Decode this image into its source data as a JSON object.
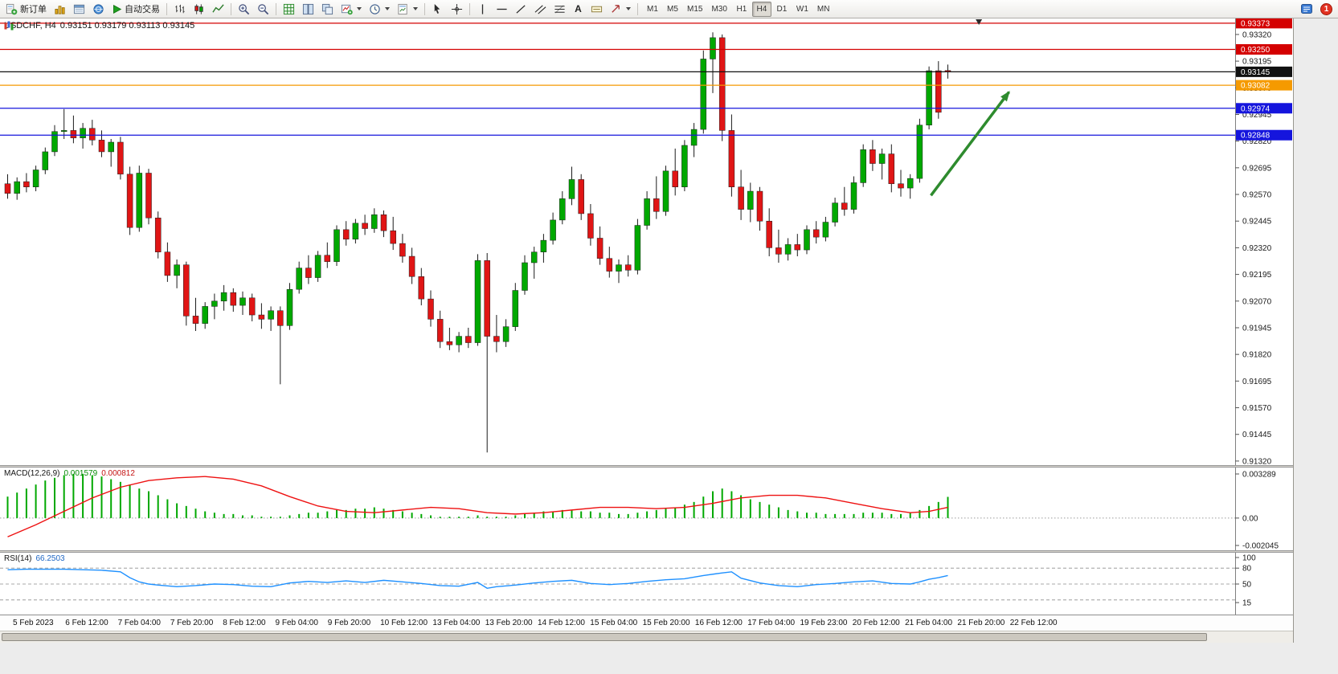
{
  "toolbar": {
    "new_order_label": "新订单",
    "auto_trading_label": "自动交易",
    "timeframes": [
      "M1",
      "M5",
      "M15",
      "M30",
      "H1",
      "H4",
      "D1",
      "W1",
      "MN"
    ],
    "active_timeframe": "H4",
    "notification_badge": "1",
    "text_tool_glyph": "A"
  },
  "window": {
    "symbol_title": "USDCHF, H4",
    "ohlc_text": "0.93151 0.93179 0.93113 0.93145"
  },
  "indicators": {
    "macd_name": "MACD(12,26,9)",
    "macd_value_main": "0.001579",
    "macd_value_signal": "0.000812",
    "rsi_name": "RSI(14)",
    "rsi_value": "66.2503"
  },
  "chart_data": {
    "type": "candlestick",
    "symbol": "USDCHF",
    "timeframe": "H4",
    "current_bar": {
      "open": 0.93151,
      "high": 0.93179,
      "low": 0.93113,
      "close": 0.93145
    },
    "current_price": 0.93145,
    "price_scale_divisor": 100000,
    "price_ticks": [
      "0.93320",
      "0.93195",
      "0.93070",
      "0.92945",
      "0.92820",
      "0.92695",
      "0.92570",
      "0.92445",
      "0.92320",
      "0.92195",
      "0.92070",
      "0.91945",
      "0.91820",
      "0.91695",
      "0.91570",
      "0.91445",
      "0.91320"
    ],
    "hlines": [
      {
        "price": 0.93373,
        "label": "0.93373",
        "color": "#d40000"
      },
      {
        "price": 0.9325,
        "label": "0.93250",
        "color": "#d40000"
      },
      {
        "price": 0.93145,
        "label": "0.93145",
        "color": "#111111"
      },
      {
        "price": 0.93082,
        "label": "0.93082",
        "color": "#f59a00"
      },
      {
        "price": 0.92974,
        "label": "0.92974",
        "color": "#1515dd"
      },
      {
        "price": 0.92848,
        "label": "0.92848",
        "color": "#1515dd"
      }
    ],
    "arrow": {
      "from_bar": 98.5,
      "from_price": 0.92565,
      "to_bar": 106.8,
      "to_price": 0.9305
    },
    "top_marker_bar": 103.6,
    "time_labels": [
      "5 Feb 2023",
      "6 Feb 12:00",
      "7 Feb 04:00",
      "7 Feb 20:00",
      "8 Feb 12:00",
      "9 Feb 04:00",
      "9 Feb 20:00",
      "10 Feb 12:00",
      "13 Feb 04:00",
      "13 Feb 20:00",
      "14 Feb 12:00",
      "15 Feb 04:00",
      "15 Feb 20:00",
      "16 Feb 12:00",
      "17 Feb 04:00",
      "19 Feb 23:00",
      "20 Feb 12:00",
      "21 Feb 04:00",
      "21 Feb 20:00",
      "22 Feb 12:00"
    ],
    "candles_ohlc_points": [
      [
        92620,
        92665,
        92550,
        92575
      ],
      [
        92575,
        92650,
        92545,
        92630
      ],
      [
        92630,
        92670,
        92580,
        92605
      ],
      [
        92605,
        92705,
        92585,
        92685
      ],
      [
        92685,
        92790,
        92665,
        92770
      ],
      [
        92770,
        92895,
        92750,
        92865
      ],
      [
        92865,
        92970,
        92830,
        92870
      ],
      [
        92870,
        92940,
        92810,
        92835
      ],
      [
        92835,
        92905,
        92785,
        92880
      ],
      [
        92880,
        92920,
        92800,
        92825
      ],
      [
        92825,
        92870,
        92745,
        92770
      ],
      [
        92770,
        92830,
        92700,
        92815
      ],
      [
        92815,
        92840,
        92640,
        92665
      ],
      [
        92665,
        92700,
        92380,
        92415
      ],
      [
        92415,
        92705,
        92395,
        92670
      ],
      [
        92670,
        92690,
        92430,
        92460
      ],
      [
        92460,
        92490,
        92270,
        92300
      ],
      [
        92300,
        92345,
        92160,
        92190
      ],
      [
        92190,
        92265,
        92130,
        92240
      ],
      [
        92240,
        92255,
        91955,
        92000
      ],
      [
        92000,
        92085,
        91930,
        91965
      ],
      [
        91965,
        92065,
        91940,
        92045
      ],
      [
        92045,
        92105,
        91985,
        92070
      ],
      [
        92070,
        92145,
        92025,
        92110
      ],
      [
        92110,
        92130,
        92020,
        92050
      ],
      [
        92050,
        92115,
        92005,
        92085
      ],
      [
        92085,
        92105,
        91975,
        92005
      ],
      [
        92005,
        92060,
        91940,
        91985
      ],
      [
        91985,
        92045,
        91930,
        92025
      ],
      [
        92025,
        92045,
        91680,
        91955
      ],
      [
        91955,
        92155,
        91935,
        92125
      ],
      [
        92125,
        92255,
        92105,
        92225
      ],
      [
        92225,
        92285,
        92150,
        92180
      ],
      [
        92180,
        92305,
        92160,
        92285
      ],
      [
        92285,
        92345,
        92225,
        92255
      ],
      [
        92255,
        92425,
        92235,
        92405
      ],
      [
        92405,
        92445,
        92330,
        92360
      ],
      [
        92360,
        92455,
        92340,
        92435
      ],
      [
        92435,
        92475,
        92380,
        92410
      ],
      [
        92410,
        92505,
        92390,
        92475
      ],
      [
        92475,
        92495,
        92370,
        92400
      ],
      [
        92400,
        92465,
        92310,
        92340
      ],
      [
        92340,
        92385,
        92250,
        92280
      ],
      [
        92280,
        92320,
        92150,
        92185
      ],
      [
        92185,
        92225,
        92050,
        92080
      ],
      [
        92080,
        92120,
        91950,
        91985
      ],
      [
        91985,
        92025,
        91850,
        91880
      ],
      [
        91880,
        91945,
        91840,
        91865
      ],
      [
        91865,
        91925,
        91830,
        91905
      ],
      [
        91905,
        91945,
        91850,
        91875
      ],
      [
        91875,
        92290,
        91860,
        92260
      ],
      [
        92260,
        92295,
        91360,
        91905
      ],
      [
        91905,
        92005,
        91830,
        91880
      ],
      [
        91880,
        91985,
        91855,
        91950
      ],
      [
        91950,
        92155,
        91930,
        92120
      ],
      [
        92120,
        92285,
        92100,
        92250
      ],
      [
        92250,
        92325,
        92175,
        92300
      ],
      [
        92300,
        92385,
        92250,
        92355
      ],
      [
        92355,
        92485,
        92335,
        92450
      ],
      [
        92450,
        92585,
        92430,
        92550
      ],
      [
        92550,
        92700,
        92520,
        92640
      ],
      [
        92640,
        92665,
        92450,
        92480
      ],
      [
        92480,
        92525,
        92330,
        92365
      ],
      [
        92365,
        92420,
        92240,
        92270
      ],
      [
        92270,
        92325,
        92180,
        92210
      ],
      [
        92210,
        92265,
        92155,
        92240
      ],
      [
        92240,
        92285,
        92185,
        92215
      ],
      [
        92215,
        92455,
        92195,
        92425
      ],
      [
        92425,
        92585,
        92405,
        92550
      ],
      [
        92550,
        92655,
        92455,
        92490
      ],
      [
        92490,
        92705,
        92470,
        92680
      ],
      [
        92680,
        92785,
        92565,
        92605
      ],
      [
        92605,
        92825,
        92585,
        92800
      ],
      [
        92800,
        92905,
        92745,
        92875
      ],
      [
        92875,
        93245,
        92855,
        93205
      ],
      [
        93205,
        93330,
        93045,
        93305
      ],
      [
        93305,
        93320,
        92820,
        92870
      ],
      [
        92870,
        92945,
        92560,
        92605
      ],
      [
        92605,
        92685,
        92450,
        92500
      ],
      [
        92500,
        92625,
        92440,
        92585
      ],
      [
        92585,
        92605,
        92400,
        92445
      ],
      [
        92445,
        92505,
        92280,
        92320
      ],
      [
        92320,
        92405,
        92250,
        92290
      ],
      [
        92290,
        92365,
        92260,
        92335
      ],
      [
        92335,
        92385,
        92280,
        92310
      ],
      [
        92310,
        92425,
        92290,
        92405
      ],
      [
        92405,
        92445,
        92340,
        92370
      ],
      [
        92370,
        92465,
        92350,
        92440
      ],
      [
        92440,
        92555,
        92420,
        92530
      ],
      [
        92530,
        92605,
        92470,
        92500
      ],
      [
        92500,
        92655,
        92480,
        92625
      ],
      [
        92625,
        92805,
        92605,
        92780
      ],
      [
        92780,
        92825,
        92680,
        92715
      ],
      [
        92715,
        92785,
        92640,
        92760
      ],
      [
        92760,
        92805,
        92580,
        92620
      ],
      [
        92620,
        92685,
        92560,
        92600
      ],
      [
        92600,
        92665,
        92550,
        92645
      ],
      [
        92645,
        92925,
        92625,
        92895
      ],
      [
        92895,
        93170,
        92875,
        93150
      ],
      [
        93150,
        93195,
        92925,
        92955
      ],
      [
        93151,
        93179,
        93113,
        93145
      ]
    ],
    "macd": {
      "unit": 0.0001,
      "axis_labels": [
        "0.003289",
        "0.00",
        "-0.002045"
      ],
      "axis_max": 0.003289,
      "axis_min": -0.002045,
      "histogram_x10000": [
        16,
        19,
        22,
        25,
        28,
        30,
        32,
        33,
        33,
        32,
        31,
        29,
        27,
        25,
        22,
        20,
        17,
        14,
        11,
        9,
        7,
        5,
        4,
        3,
        3,
        2,
        2,
        1,
        1,
        1,
        2,
        3,
        4,
        4,
        5,
        6,
        6,
        7,
        7,
        8,
        7,
        6,
        5,
        4,
        3,
        2,
        1,
        1,
        1,
        1,
        2,
        1,
        1,
        1,
        2,
        3,
        4,
        5,
        5,
        6,
        6,
        5,
        5,
        4,
        4,
        3,
        3,
        4,
        5,
        6,
        7,
        8,
        10,
        12,
        16,
        20,
        22,
        20,
        17,
        14,
        12,
        10,
        8,
        6,
        5,
        4,
        4,
        3,
        3,
        3,
        3,
        4,
        4,
        4,
        3,
        3,
        4,
        6,
        9,
        12,
        15.8
      ],
      "signal_x10000": [
        [
          0,
          -14
        ],
        [
          3,
          -5
        ],
        [
          6,
          5
        ],
        [
          9,
          15
        ],
        [
          12,
          23
        ],
        [
          15,
          28
        ],
        [
          18,
          30
        ],
        [
          21,
          31
        ],
        [
          24,
          29
        ],
        [
          27,
          24
        ],
        [
          30,
          16
        ],
        [
          33,
          9
        ],
        [
          36,
          5
        ],
        [
          39,
          4
        ],
        [
          42,
          6
        ],
        [
          45,
          8
        ],
        [
          48,
          7
        ],
        [
          51,
          4
        ],
        [
          54,
          3
        ],
        [
          57,
          4
        ],
        [
          60,
          6
        ],
        [
          63,
          8
        ],
        [
          66,
          8
        ],
        [
          69,
          7
        ],
        [
          72,
          8
        ],
        [
          75,
          11
        ],
        [
          78,
          15
        ],
        [
          81,
          17
        ],
        [
          84,
          17
        ],
        [
          87,
          15
        ],
        [
          90,
          11
        ],
        [
          93,
          7
        ],
        [
          96,
          4
        ],
        [
          98,
          5
        ],
        [
          100,
          8
        ]
      ]
    },
    "rsi": {
      "axis_labels": [
        "100",
        "80",
        "50",
        "15"
      ],
      "levels": [
        80,
        50,
        20
      ],
      "points": [
        [
          0,
          77
        ],
        [
          2,
          78
        ],
        [
          4,
          78
        ],
        [
          6,
          78
        ],
        [
          8,
          77
        ],
        [
          10,
          76
        ],
        [
          12,
          73
        ],
        [
          13,
          62
        ],
        [
          14,
          54
        ],
        [
          15,
          50
        ],
        [
          16,
          48
        ],
        [
          18,
          45
        ],
        [
          20,
          47
        ],
        [
          22,
          50
        ],
        [
          24,
          49
        ],
        [
          26,
          46
        ],
        [
          28,
          45
        ],
        [
          30,
          52
        ],
        [
          32,
          55
        ],
        [
          34,
          53
        ],
        [
          36,
          56
        ],
        [
          38,
          53
        ],
        [
          40,
          57
        ],
        [
          42,
          54
        ],
        [
          44,
          51
        ],
        [
          46,
          47
        ],
        [
          48,
          46
        ],
        [
          50,
          53
        ],
        [
          51,
          42
        ],
        [
          52,
          45
        ],
        [
          54,
          48
        ],
        [
          56,
          52
        ],
        [
          58,
          55
        ],
        [
          60,
          57
        ],
        [
          62,
          51
        ],
        [
          64,
          49
        ],
        [
          66,
          51
        ],
        [
          68,
          55
        ],
        [
          70,
          58
        ],
        [
          72,
          60
        ],
        [
          74,
          66
        ],
        [
          76,
          71
        ],
        [
          77,
          73
        ],
        [
          78,
          61
        ],
        [
          80,
          52
        ],
        [
          82,
          47
        ],
        [
          84,
          45
        ],
        [
          86,
          49
        ],
        [
          88,
          51
        ],
        [
          90,
          54
        ],
        [
          92,
          56
        ],
        [
          94,
          51
        ],
        [
          96,
          50
        ],
        [
          97,
          54
        ],
        [
          98,
          59
        ],
        [
          99,
          62
        ],
        [
          100,
          66
        ]
      ]
    },
    "colors": {
      "bull": "#00a800",
      "bear": "#e01515",
      "wick": "#1c1c1c",
      "macd_hist": "#00a800",
      "macd_signal": "#ee1111",
      "rsi": "#1e90ff",
      "arrow": "#2e8b2e"
    }
  }
}
